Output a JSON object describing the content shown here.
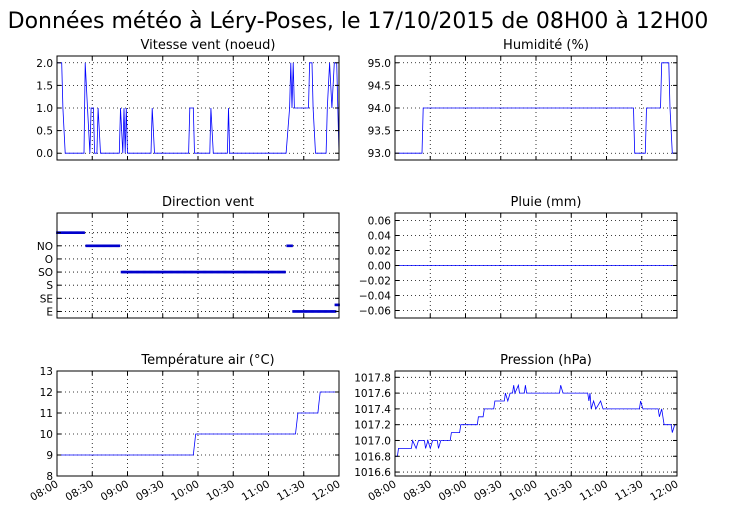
{
  "suptitle": "Données météo à Léry-Poses, le 17/10/2015 de 08H00 à 12H00",
  "x_tick_labels": [
    "08:00",
    "08:30",
    "09:00",
    "09:30",
    "10:00",
    "10:30",
    "11:00",
    "11:30",
    "12:00"
  ],
  "colors": {
    "line": "#0000ff",
    "grid": "#000000"
  },
  "chart_data": [
    {
      "id": "wind",
      "type": "line",
      "title": "Vitesse vent (noeud)",
      "x_range": [
        "08:00",
        "12:00"
      ],
      "ylim": [
        -0.15,
        2.15
      ],
      "yticks": [
        0.0,
        0.5,
        1.0,
        1.5,
        2.0
      ],
      "ytick_labels": [
        "0.0",
        "0.5",
        "1.0",
        "1.5",
        "2.0"
      ],
      "show_x_labels": false,
      "grid": true,
      "series": [
        {
          "points": [
            [
              "08:00",
              2
            ],
            [
              "08:04",
              2
            ],
            [
              "08:05",
              1
            ],
            [
              "08:07",
              0
            ],
            [
              "08:23",
              0
            ],
            [
              "08:24",
              2
            ],
            [
              "08:26",
              1
            ],
            [
              "08:28",
              0
            ],
            [
              "08:29",
              1
            ],
            [
              "08:31",
              1
            ],
            [
              "08:32",
              0
            ],
            [
              "08:34",
              0
            ],
            [
              "08:35",
              1
            ],
            [
              "08:37",
              0
            ],
            [
              "08:53",
              0
            ],
            [
              "08:54",
              1
            ],
            [
              "08:56",
              0
            ],
            [
              "08:57",
              1
            ],
            [
              "08:58",
              0
            ],
            [
              "08:59",
              1
            ],
            [
              "09:00",
              0
            ],
            [
              "09:20",
              0
            ],
            [
              "09:21",
              1
            ],
            [
              "09:23",
              0
            ],
            [
              "09:52",
              0
            ],
            [
              "09:53",
              1
            ],
            [
              "09:56",
              1
            ],
            [
              "09:57",
              0
            ],
            [
              "10:10",
              0
            ],
            [
              "10:11",
              1
            ],
            [
              "10:13",
              0
            ],
            [
              "10:25",
              0
            ],
            [
              "10:26",
              1
            ],
            [
              "10:27",
              0
            ],
            [
              "11:15",
              0
            ],
            [
              "11:18",
              1
            ],
            [
              "11:19",
              2
            ],
            [
              "11:20",
              1
            ],
            [
              "11:21",
              2
            ],
            [
              "11:22",
              1
            ],
            [
              "11:34",
              1
            ],
            [
              "11:35",
              2
            ],
            [
              "11:37",
              2
            ],
            [
              "11:38",
              1
            ],
            [
              "11:40",
              0
            ],
            [
              "11:49",
              0
            ],
            [
              "11:50",
              1
            ],
            [
              "11:52",
              2
            ],
            [
              "11:54",
              1
            ],
            [
              "11:56",
              2
            ],
            [
              "11:58",
              2
            ],
            [
              "11:59",
              1
            ],
            [
              "12:00",
              0
            ]
          ]
        }
      ]
    },
    {
      "id": "humidity",
      "type": "line",
      "title": "Humidité (%)",
      "x_range": [
        "08:00",
        "12:00"
      ],
      "ylim": [
        92.85,
        95.15
      ],
      "yticks": [
        93.0,
        93.5,
        94.0,
        94.5,
        95.0
      ],
      "ytick_labels": [
        "93.0",
        "93.5",
        "94.0",
        "94.5",
        "95.0"
      ],
      "show_x_labels": false,
      "grid": true,
      "series": [
        {
          "points": [
            [
              "08:00",
              93
            ],
            [
              "08:23",
              93
            ],
            [
              "08:24",
              94
            ],
            [
              "11:23",
              94
            ],
            [
              "11:24",
              93
            ],
            [
              "11:33",
              93
            ],
            [
              "11:34",
              94
            ],
            [
              "11:46",
              94
            ],
            [
              "11:47",
              95
            ],
            [
              "11:53",
              95
            ],
            [
              "11:54",
              94
            ],
            [
              "11:56",
              93
            ],
            [
              "12:00",
              93
            ]
          ]
        }
      ]
    },
    {
      "id": "direction",
      "type": "scatter",
      "title": "Direction vent",
      "x_range": [
        "08:00",
        "12:00"
      ],
      "ylim": [
        0.5,
        8.5
      ],
      "yticks": [
        1,
        2,
        3,
        4,
        5,
        6,
        7
      ],
      "ytick_labels": [
        "E",
        "SE",
        "S",
        "SO",
        "O",
        "NO",
        ""
      ],
      "show_x_labels": false,
      "grid": true,
      "series": [
        {
          "segments": [
            {
              "y": 7,
              "from": "08:00",
              "to": "08:23"
            },
            {
              "y": 6,
              "from": "08:25",
              "to": "08:53"
            },
            {
              "y": 4,
              "from": "08:55",
              "to": "11:14"
            },
            {
              "y": 6,
              "from": "11:16",
              "to": "11:20"
            },
            {
              "y": 1,
              "from": "11:21",
              "to": "11:57"
            },
            {
              "y": 1.5,
              "from": "11:57",
              "to": "12:00"
            }
          ]
        }
      ]
    },
    {
      "id": "rain",
      "type": "line",
      "title": "Pluie (mm)",
      "x_range": [
        "08:00",
        "12:00"
      ],
      "ylim": [
        -0.07,
        0.07
      ],
      "yticks": [
        -0.06,
        -0.04,
        -0.02,
        0.0,
        0.02,
        0.04,
        0.06
      ],
      "ytick_labels": [
        "−0.06",
        "−0.04",
        "−0.02",
        "0.00",
        "0.02",
        "0.04",
        "0.06"
      ],
      "show_x_labels": false,
      "grid": true,
      "series": [
        {
          "points": [
            [
              "08:00",
              0
            ],
            [
              "12:00",
              0
            ]
          ]
        }
      ]
    },
    {
      "id": "temperature",
      "type": "line",
      "title": "Température air (°C)",
      "x_range": [
        "08:00",
        "12:00"
      ],
      "ylim": [
        8,
        13
      ],
      "yticks": [
        8,
        9,
        10,
        11,
        12,
        13
      ],
      "ytick_labels": [
        "8",
        "9",
        "10",
        "11",
        "12",
        "13"
      ],
      "show_x_labels": true,
      "grid": true,
      "series": [
        {
          "points": [
            [
              "08:00",
              9
            ],
            [
              "09:56",
              9
            ],
            [
              "09:57",
              9.5
            ],
            [
              "09:58",
              10
            ],
            [
              "11:23",
              10
            ],
            [
              "11:24",
              10.5
            ],
            [
              "11:25",
              11
            ],
            [
              "11:42",
              11
            ],
            [
              "11:43",
              11.5
            ],
            [
              "11:44",
              12
            ],
            [
              "12:00",
              12
            ]
          ]
        }
      ]
    },
    {
      "id": "pressure",
      "type": "line",
      "title": "Pression (hPa)",
      "x_range": [
        "08:00",
        "12:00"
      ],
      "ylim": [
        1016.55,
        1017.88
      ],
      "yticks": [
        1016.6,
        1016.8,
        1017.0,
        1017.2,
        1017.4,
        1017.6,
        1017.8
      ],
      "ytick_labels": [
        "1016.6",
        "1016.8",
        "1017.0",
        "1017.2",
        "1017.4",
        "1017.6",
        "1017.8"
      ],
      "show_x_labels": true,
      "grid": true,
      "series": [
        {
          "points": [
            [
              "08:00",
              1016.8
            ],
            [
              "08:02",
              1016.8
            ],
            [
              "08:03",
              1016.9
            ],
            [
              "08:14",
              1016.9
            ],
            [
              "08:15",
              1017.0
            ],
            [
              "08:18",
              1016.9
            ],
            [
              "08:20",
              1017.0
            ],
            [
              "08:25",
              1017.0
            ],
            [
              "08:26",
              1016.9
            ],
            [
              "08:28",
              1017.0
            ],
            [
              "08:30",
              1016.9
            ],
            [
              "08:32",
              1017.0
            ],
            [
              "08:36",
              1017.0
            ],
            [
              "08:37",
              1016.9
            ],
            [
              "08:39",
              1017.0
            ],
            [
              "08:47",
              1017.0
            ],
            [
              "08:48",
              1017.1
            ],
            [
              "08:55",
              1017.1
            ],
            [
              "08:56",
              1017.2
            ],
            [
              "09:10",
              1017.2
            ],
            [
              "09:11",
              1017.3
            ],
            [
              "09:15",
              1017.3
            ],
            [
              "09:16",
              1017.4
            ],
            [
              "09:24",
              1017.4
            ],
            [
              "09:25",
              1017.5
            ],
            [
              "09:33",
              1017.5
            ],
            [
              "09:34",
              1017.6
            ],
            [
              "09:36",
              1017.5
            ],
            [
              "09:38",
              1017.6
            ],
            [
              "09:40",
              1017.6
            ],
            [
              "09:41",
              1017.7
            ],
            [
              "09:42",
              1017.6
            ],
            [
              "09:45",
              1017.7
            ],
            [
              "09:46",
              1017.6
            ],
            [
              "09:50",
              1017.6
            ],
            [
              "09:51",
              1017.7
            ],
            [
              "09:52",
              1017.6
            ],
            [
              "10:20",
              1017.6
            ],
            [
              "10:21",
              1017.7
            ],
            [
              "10:23",
              1017.6
            ],
            [
              "10:44",
              1017.6
            ],
            [
              "10:45",
              1017.5
            ],
            [
              "10:46",
              1017.6
            ],
            [
              "10:47",
              1017.4
            ],
            [
              "10:49",
              1017.5
            ],
            [
              "10:51",
              1017.4
            ],
            [
              "10:55",
              1017.5
            ],
            [
              "10:57",
              1017.4
            ],
            [
              "11:28",
              1017.4
            ],
            [
              "11:29",
              1017.5
            ],
            [
              "11:31",
              1017.4
            ],
            [
              "11:44",
              1017.4
            ],
            [
              "11:45",
              1017.3
            ],
            [
              "11:47",
              1017.4
            ],
            [
              "11:49",
              1017.2
            ],
            [
              "11:55",
              1017.2
            ],
            [
              "11:56",
              1017.1
            ],
            [
              "11:58",
              1017.2
            ],
            [
              "12:00",
              1017.2
            ]
          ]
        }
      ]
    }
  ]
}
